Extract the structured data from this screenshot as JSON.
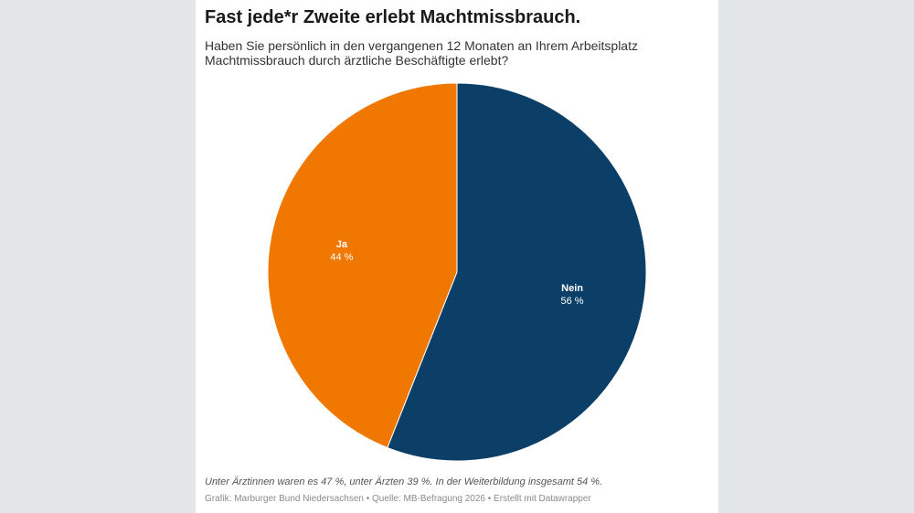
{
  "title": "Fast jede*r Zweite erlebt Machtmissbrauch.",
  "subtitle": "Haben Sie persönlich in den vergangenen 12 Monaten an Ihrem Arbeitsplatz Machtmissbrauch durch ärztliche Beschäftigte erlebt?",
  "chart_data": {
    "type": "pie",
    "slices": [
      {
        "label": "Nein",
        "value": 56,
        "value_label": "56 %",
        "color": "#0b3f68"
      },
      {
        "label": "Ja",
        "value": 44,
        "value_label": "44 %",
        "color": "#f07800"
      }
    ]
  },
  "footer": {
    "note": "Unter Ärztinnen waren es 47 %, unter Ärzten 39 %. In der Weiterbildung insgesamt 54 %.",
    "credits": "Grafik: Marburger Bund Niedersachsen • Quelle: MB-Befragung 2026 • Erstellt mit Datawrapper"
  }
}
